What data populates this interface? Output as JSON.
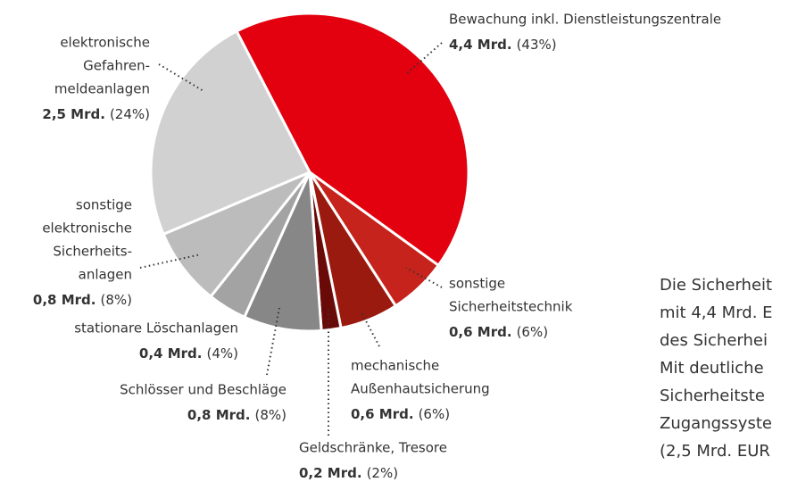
{
  "chart_data": {
    "type": "pie",
    "categories": [
      [
        "Bewachung inkl. Dienstleistungszentrale"
      ],
      [
        "sonstige",
        "Sicherheitstechnik"
      ],
      [
        "mechanische",
        "Außenhautsicherung"
      ],
      [
        "Geldschränke, Tresore"
      ],
      [
        "Schlösser und Beschläge"
      ],
      [
        "stationare Löschanlagen"
      ],
      [
        "sonstige",
        "elektronische",
        "Sicherheits-",
        "anlagen"
      ],
      [
        "elektronische",
        "Gefahren-",
        "meldeanlagen"
      ]
    ],
    "values": [
      43,
      6,
      6,
      2,
      8,
      4,
      8,
      24
    ],
    "value_labels": [
      "(43%)",
      "(6%)",
      "(6%)",
      "(2%)",
      "(8%)",
      "(4%)",
      "(8%)",
      "(24%)"
    ],
    "amount_labels": [
      "4,4 Mrd.",
      "0,6 Mrd.",
      "0,6 Mrd.",
      "0,2 Mrd.",
      "0,8 Mrd.",
      "0,4 Mrd.",
      "0,8 Mrd.",
      "2,5 Mrd."
    ],
    "colors": [
      "#e3000f",
      "#c5231b",
      "#9a1a0f",
      "#6a0a08",
      "#878787",
      "#a3a3a3",
      "#bcbcbc",
      "#d1d1d1"
    ],
    "body_text": [
      "Die Sicherheit",
      "mit 4,4 Mrd. E",
      "des Sicherhei",
      "Mit deutliche",
      "Sicherheitste",
      "Zugangssyste",
      "(2,5 Mrd. EUR"
    ]
  }
}
